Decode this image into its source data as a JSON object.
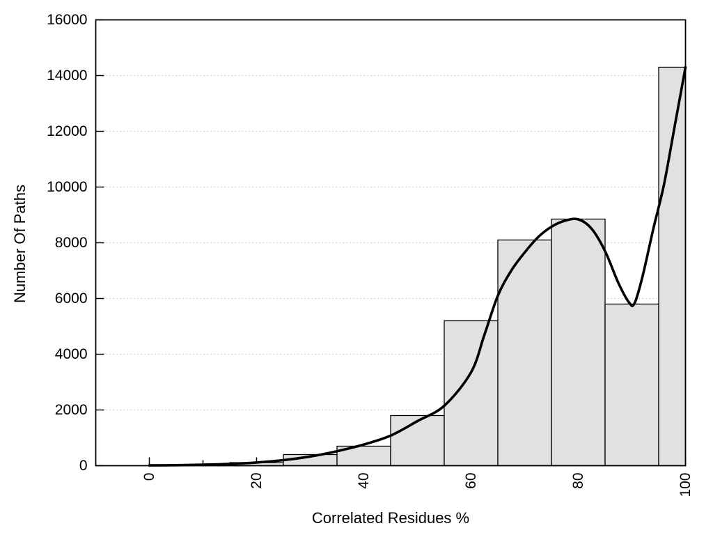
{
  "page": {
    "background_color": "#ffffff",
    "foreground_color": "#000000"
  },
  "chart_data": {
    "type": "bar",
    "subtype": "histogram-with-smooth-curve",
    "xlabel": "Correlated Residues %",
    "ylabel": "Number Of Paths",
    "xlim": [
      -10,
      100
    ],
    "ylim": [
      0,
      16000
    ],
    "x_major_ticks": [
      0,
      20,
      40,
      60,
      80,
      100
    ],
    "x_minor_ticks": [
      10,
      30,
      50,
      70,
      90
    ],
    "y_ticks": [
      0,
      2000,
      4000,
      6000,
      8000,
      10000,
      12000,
      14000,
      16000
    ],
    "x_tick_label_rotation_deg": -90,
    "grid": {
      "horizontal": true,
      "vertical": false,
      "style": "dotted",
      "color": "#bdbdbd"
    },
    "legend": null,
    "bars": {
      "bin_centers": [
        0,
        10,
        20,
        30,
        40,
        50,
        60,
        70,
        80,
        90,
        100
      ],
      "bin_width": 10,
      "clamp_range": [
        0,
        100
      ],
      "values": [
        10,
        30,
        110,
        400,
        700,
        1800,
        5200,
        8100,
        8850,
        5800,
        14300
      ],
      "fill": "#e1e1e1",
      "stroke": "#000000"
    },
    "smooth_curve": {
      "color": "#000000",
      "stroke_width": 3.6,
      "points": [
        [
          0,
          10
        ],
        [
          5,
          18
        ],
        [
          10,
          35
        ],
        [
          15,
          65
        ],
        [
          20,
          115
        ],
        [
          25,
          200
        ],
        [
          30,
          330
        ],
        [
          35,
          520
        ],
        [
          40,
          760
        ],
        [
          45,
          1080
        ],
        [
          50,
          1600
        ],
        [
          55,
          2150
        ],
        [
          60,
          3350
        ],
        [
          62.5,
          4700
        ],
        [
          65,
          6100
        ],
        [
          67.5,
          7000
        ],
        [
          70,
          7650
        ],
        [
          72.5,
          8200
        ],
        [
          75,
          8575
        ],
        [
          77.5,
          8790
        ],
        [
          80,
          8840
        ],
        [
          82.5,
          8500
        ],
        [
          85,
          7700
        ],
        [
          87.5,
          6550
        ],
        [
          89.5,
          5850
        ],
        [
          90.5,
          5830
        ],
        [
          92,
          6800
        ],
        [
          94,
          8500
        ],
        [
          96,
          10100
        ],
        [
          98,
          12200
        ],
        [
          100,
          14300
        ]
      ]
    }
  }
}
